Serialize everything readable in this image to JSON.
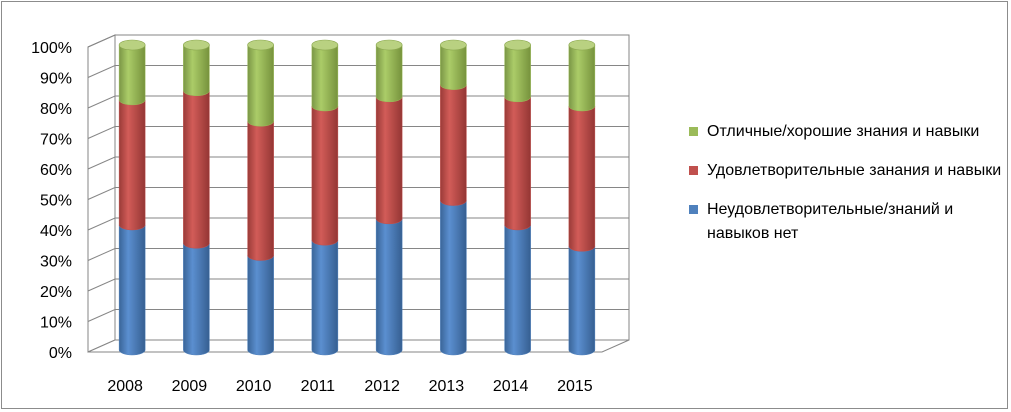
{
  "chart_data": {
    "type": "bar",
    "stacked": true,
    "style": "3d-cylinder",
    "categories": [
      "2008",
      "2009",
      "2010",
      "2011",
      "2012",
      "2013",
      "2014",
      "2015"
    ],
    "series": [
      {
        "name": "Неудовлетворительные/знаний и навыков нет",
        "color": "#4f81bd",
        "values": [
          41,
          35,
          31,
          36,
          43,
          49,
          41,
          34
        ]
      },
      {
        "name": "Удовлетворительные занания и навыки",
        "color": "#c0504d",
        "values": [
          41,
          50,
          44,
          44,
          40,
          38,
          42,
          46
        ]
      },
      {
        "name": "Отличные/хорошие знания и навыки",
        "color": "#9bbb59",
        "values": [
          18,
          15,
          25,
          20,
          17,
          13,
          17,
          20
        ]
      }
    ],
    "ylim": [
      0,
      100
    ],
    "yticks": [
      "0%",
      "10%",
      "20%",
      "30%",
      "40%",
      "50%",
      "60%",
      "70%",
      "80%",
      "90%",
      "100%"
    ],
    "grid": true,
    "legend_position": "right"
  }
}
